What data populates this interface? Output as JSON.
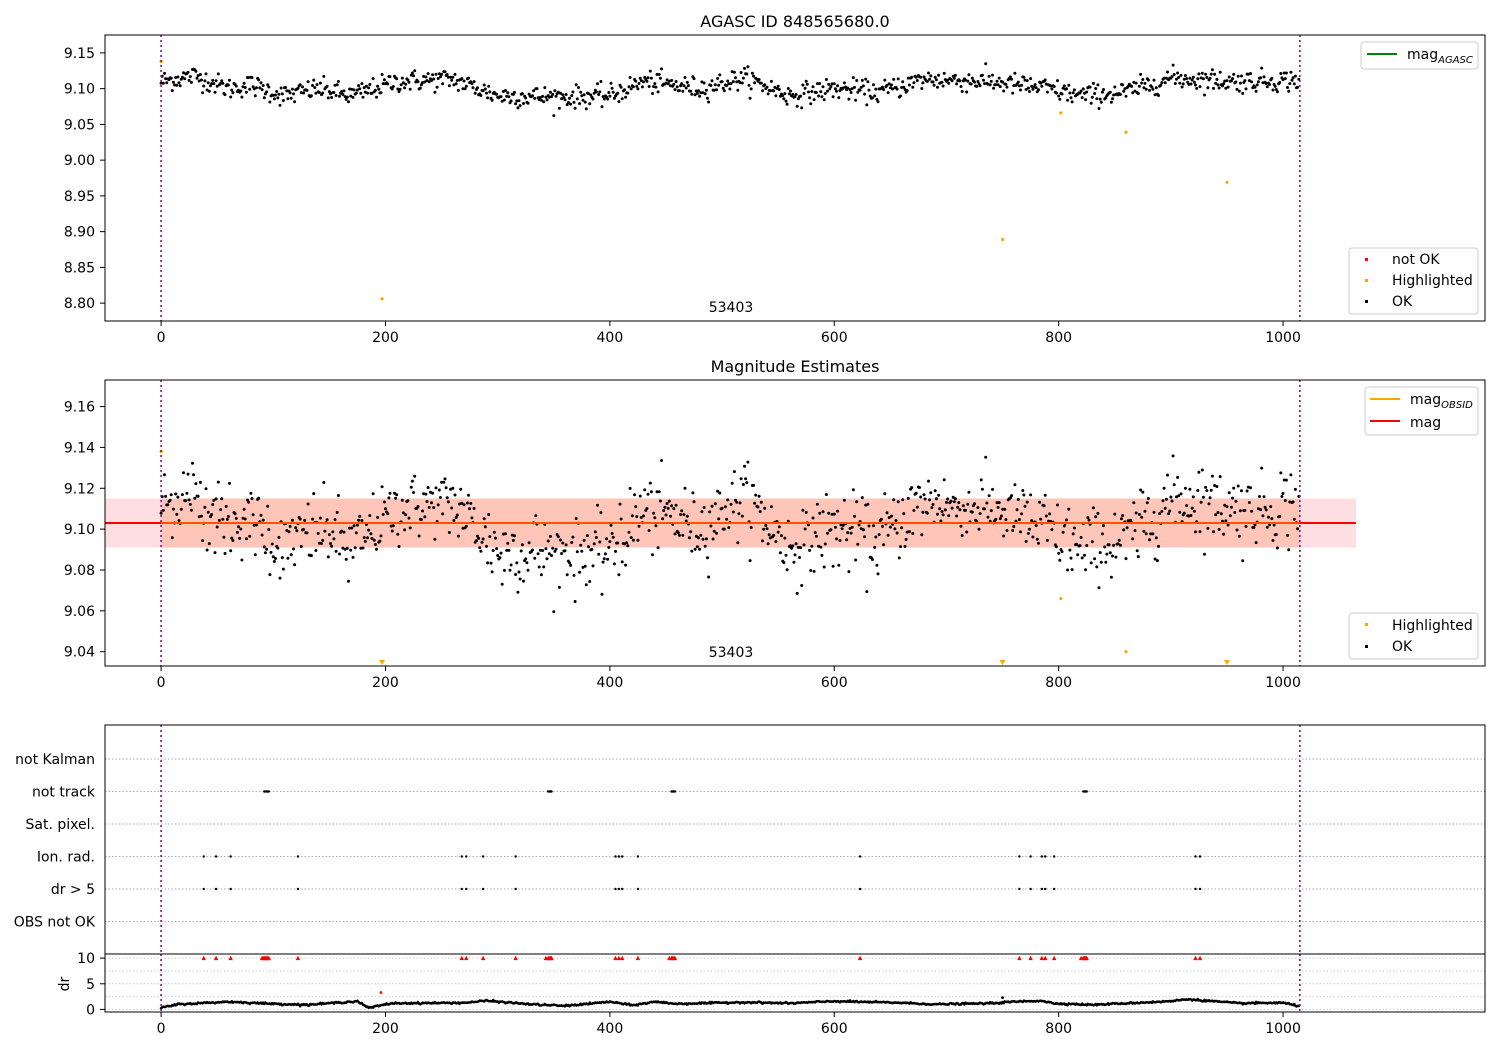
{
  "chart_data": [
    {
      "type": "scatter",
      "title": "AGASC ID 848565680.0",
      "annotation": "53403",
      "x": {
        "lim": [
          -50,
          1180
        ],
        "ticks": [
          0,
          200,
          400,
          600,
          800,
          1000
        ]
      },
      "y": {
        "lim": [
          8.775,
          9.175
        ],
        "ticks": [
          8.8,
          8.85,
          8.9,
          8.95,
          9.0,
          9.05,
          9.1,
          9.15
        ]
      },
      "vlines": [
        0,
        1015
      ],
      "ok_trend": [
        [
          0,
          9.11
        ],
        [
          30,
          9.118
        ],
        [
          60,
          9.1
        ],
        [
          80,
          9.105
        ],
        [
          110,
          9.09
        ],
        [
          140,
          9.1
        ],
        [
          170,
          9.09
        ],
        [
          210,
          9.11
        ],
        [
          260,
          9.113
        ],
        [
          300,
          9.09
        ],
        [
          360,
          9.088
        ],
        [
          400,
          9.09
        ],
        [
          430,
          9.11
        ],
        [
          480,
          9.1
        ],
        [
          520,
          9.115
        ],
        [
          560,
          9.09
        ],
        [
          600,
          9.1
        ],
        [
          640,
          9.095
        ],
        [
          680,
          9.113
        ],
        [
          740,
          9.11
        ],
        [
          790,
          9.1
        ],
        [
          820,
          9.09
        ],
        [
          860,
          9.095
        ],
        [
          900,
          9.115
        ],
        [
          960,
          9.11
        ],
        [
          1015,
          9.112
        ]
      ],
      "ok_noise": 0.0075,
      "ok_count": 1015,
      "highlighted": [
        [
          0,
          9.138
        ],
        [
          197,
          8.806
        ],
        [
          750,
          8.889
        ],
        [
          802,
          9.066
        ],
        [
          860,
          9.039
        ],
        [
          950,
          8.969
        ]
      ],
      "legend_lines": [
        {
          "label": "mag",
          "sub": "AGASC",
          "color": "#008000"
        }
      ],
      "legend_markers": [
        {
          "label": "not OK",
          "color": "#ff0000"
        },
        {
          "label": "Highlighted",
          "color": "#ffa500"
        },
        {
          "label": "OK",
          "color": "#000000"
        }
      ]
    },
    {
      "type": "scatter",
      "title": "Magnitude Estimates",
      "annotation": "53403",
      "x": {
        "lim": [
          -50,
          1180
        ],
        "ticks": [
          0,
          200,
          400,
          600,
          800,
          1000
        ]
      },
      "y": {
        "lim": [
          9.033,
          9.173
        ],
        "ticks": [
          9.04,
          9.06,
          9.08,
          9.1,
          9.12,
          9.14,
          9.16
        ]
      },
      "vlines": [
        0,
        1015
      ],
      "mag_line": 9.103,
      "mag_band": [
        9.091,
        9.115
      ],
      "obsid_band": [
        9.091,
        9.115
      ],
      "ok_noise": 0.009,
      "highlighted": [
        [
          0,
          9.138
        ],
        [
          802,
          9.066
        ],
        [
          860,
          9.04
        ]
      ],
      "highlighted_offscale": [
        197,
        750,
        950
      ],
      "legend_lines": [
        {
          "label": "mag",
          "sub": "OBSID",
          "color": "#ffa500"
        },
        {
          "label": "mag",
          "sub": "",
          "color": "#ff0000"
        }
      ],
      "legend_markers": [
        {
          "label": "Highlighted",
          "color": "#ffa500"
        },
        {
          "label": "OK",
          "color": "#000000"
        }
      ]
    },
    {
      "type": "scatter",
      "title": "",
      "x": {
        "lim": [
          -50,
          1180
        ],
        "ticks": [
          0,
          200,
          400,
          600,
          800,
          1000
        ]
      },
      "vlines": [
        0,
        1015
      ],
      "flag_rows": [
        "not Kalman",
        "not track",
        "Sat. pixel.",
        "Ion. rad.",
        "dr > 5",
        "OBS not OK"
      ],
      "flag_points": {
        "not track": [
          92,
          93,
          94,
          95,
          96,
          345,
          346,
          347,
          348,
          455,
          456,
          457,
          458,
          822,
          823,
          824,
          825
        ],
        "Ion. rad.": [
          38,
          49,
          62,
          122,
          268,
          272,
          287,
          316,
          405,
          408,
          411,
          425,
          623,
          765,
          775,
          785,
          788,
          796,
          922,
          926
        ],
        "dr > 5": [
          38,
          49,
          62,
          122,
          268,
          272,
          287,
          316,
          405,
          408,
          411,
          425,
          623,
          765,
          775,
          785,
          788,
          796,
          922,
          926
        ]
      },
      "dr": {
        "ylabel": "dr",
        "ylim": [
          -0.5,
          10.8
        ],
        "yticks": [
          0,
          5,
          10
        ],
        "clipped_at": 10,
        "clipped_x": [
          38,
          49,
          62,
          90,
          91,
          92,
          93,
          94,
          95,
          96,
          122,
          268,
          272,
          287,
          316,
          343,
          345,
          346,
          347,
          348,
          405,
          408,
          411,
          425,
          453,
          455,
          456,
          457,
          458,
          623,
          765,
          775,
          785,
          788,
          796,
          820,
          822,
          823,
          824,
          825,
          922,
          926
        ],
        "base_trend": [
          [
            0,
            0.3
          ],
          [
            15,
            1.0
          ],
          [
            60,
            1.5
          ],
          [
            100,
            1.1
          ],
          [
            130,
            0.9
          ],
          [
            175,
            1.6
          ],
          [
            185,
            0.3
          ],
          [
            205,
            1.2
          ],
          [
            270,
            1.3
          ],
          [
            290,
            1.7
          ],
          [
            330,
            1.0
          ],
          [
            360,
            0.7
          ],
          [
            400,
            1.5
          ],
          [
            420,
            0.8
          ],
          [
            440,
            1.5
          ],
          [
            460,
            1.1
          ],
          [
            520,
            1.4
          ],
          [
            560,
            1.2
          ],
          [
            600,
            1.6
          ],
          [
            660,
            1.3
          ],
          [
            690,
            1.0
          ],
          [
            740,
            1.2
          ],
          [
            760,
            1.5
          ],
          [
            785,
            1.7
          ],
          [
            795,
            1.2
          ],
          [
            830,
            0.9
          ],
          [
            900,
            1.6
          ],
          [
            915,
            2.0
          ],
          [
            960,
            1.2
          ],
          [
            1000,
            1.3
          ],
          [
            1015,
            0.6
          ]
        ],
        "outliers": [
          [
            196,
            3.3
          ],
          [
            750,
            2.3
          ]
        ]
      }
    }
  ]
}
